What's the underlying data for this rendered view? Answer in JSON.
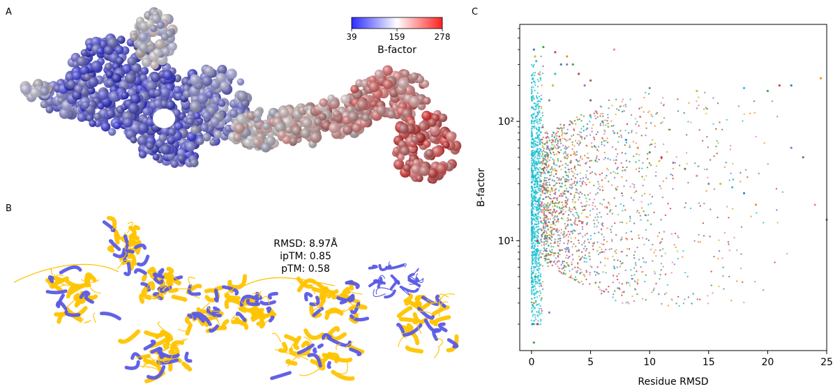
{
  "panels": {
    "a": "A",
    "b": "B",
    "c": "C"
  },
  "colorbar": {
    "label": "B-factor",
    "ticks": [
      "39",
      "159",
      "278"
    ],
    "colors": {
      "low": "#2b2bff",
      "mid": "#ffffff",
      "high": "#ff2020"
    }
  },
  "structure": {
    "colors": {
      "predicted": "#ffc400",
      "reference": "#5a5ae6"
    }
  },
  "stats": {
    "rmsd": "RMSD: 8.97Å",
    "iptm": "ipTM: 0.85",
    "ptm": "pTM: 0.58"
  },
  "chart_data": {
    "type": "scatter",
    "title": "",
    "xlabel": "Residue RMSD",
    "ylabel": "B-factor",
    "xlim": [
      -1,
      25
    ],
    "ylim": [
      1.2,
      650
    ],
    "yscale": "log",
    "xticks": [
      "0",
      "5",
      "10",
      "15",
      "20",
      "25"
    ],
    "yticks": [
      "10¹",
      "10²"
    ],
    "grid": false,
    "legend": "none",
    "series_colors": [
      "#1f77b4",
      "#ff7f0e",
      "#2ca02c",
      "#d62728",
      "#9467bd",
      "#8c564b",
      "#e377c2",
      "#7f7f7f",
      "#bcbd22",
      "#17becf"
    ],
    "x": [
      0.1,
      0.2,
      0.3,
      0.5,
      0.7,
      1.0,
      1.2,
      1.5,
      1.8,
      2.0,
      2.5,
      3.0,
      3.5,
      4.0,
      4.5,
      5.0,
      5.5,
      6.0,
      6.5,
      7.0,
      8.0,
      9.0,
      10.0,
      11.0,
      12.0,
      13.0,
      14.0,
      15.0,
      16.0,
      17.0,
      18.0,
      19.0,
      20.0,
      21.0,
      22.0,
      23.0,
      24.0,
      25.0,
      0.3,
      0.4,
      0.2,
      0.6,
      1.0,
      2.0,
      3.0,
      5.0,
      7.0,
      10.0,
      14.0,
      18.0,
      22.0,
      24.5,
      0.2,
      0.5,
      1.5
    ],
    "y": [
      2,
      3,
      5,
      10,
      20,
      40,
      80,
      150,
      200,
      250,
      300,
      350,
      300,
      250,
      200,
      150,
      120,
      100,
      90,
      80,
      70,
      60,
      55,
      50,
      45,
      40,
      35,
      30,
      30,
      28,
      25,
      20,
      180,
      200,
      60,
      50,
      20,
      15,
      350,
      320,
      400,
      250,
      420,
      380,
      300,
      220,
      400,
      190,
      180,
      190,
      200,
      230,
      1.4,
      2,
      2.5
    ]
  }
}
